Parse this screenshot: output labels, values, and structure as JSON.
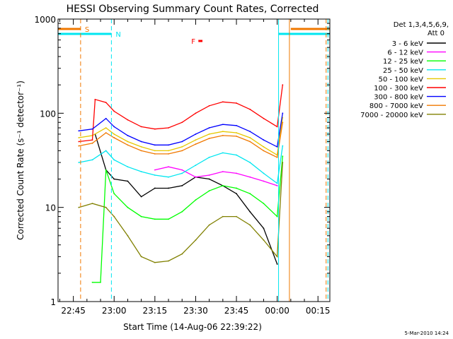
{
  "chart_data": {
    "type": "line",
    "title": "HESSI Observing Summary Count Rates, Corrected",
    "xlabel": "Start Time (14-Aug-06 22:39:22)",
    "ylabel": "Corrected Count Rate (s⁻¹ detector⁻¹)",
    "y_scale": "log",
    "ylim": [
      1,
      1000
    ],
    "xlim": [
      "22:39:22",
      "00:19:22"
    ],
    "x_ticks": [
      "22:45",
      "23:00",
      "23:15",
      "23:30",
      "23:45",
      "00:00",
      "00:15"
    ],
    "y_ticks": [
      "1",
      "10",
      "100",
      "1000"
    ],
    "grid": false,
    "legend_position": "right",
    "legend_header": [
      "Det 1,3,4,5,6,9,",
      "Att 0"
    ],
    "timestamp": "5-Mar-2010 14:24",
    "flags": [
      {
        "label": "S",
        "color": "#f07800",
        "start": "22:39:22",
        "end": "22:47:40"
      },
      {
        "label": "N",
        "color": "#00e6f0",
        "start": "22:39:22",
        "end": "22:59:00"
      },
      {
        "label": "F",
        "color": "#ff0000",
        "start": "23:31:00",
        "end": "23:32:30"
      }
    ],
    "vlines": [
      {
        "time": "22:47:40",
        "color": "#f07800"
      },
      {
        "time": "22:59:00",
        "color": "#00e6f0"
      },
      {
        "time": "00:18:00",
        "color": "#f07800"
      },
      {
        "time": "00:18:40",
        "color": "#00e6f0"
      }
    ],
    "series": [
      {
        "name": "3 - 6 keV",
        "color": "#000000",
        "x": [
          "22:53",
          "22:57",
          "23:00",
          "23:05",
          "23:10",
          "23:15",
          "23:20",
          "23:25",
          "23:30",
          "23:35",
          "23:40",
          "23:45",
          "23:50",
          "23:55",
          "00:00"
        ],
        "y": [
          60,
          25,
          20,
          19,
          13,
          16,
          16,
          17,
          21,
          20,
          17,
          14,
          9,
          6,
          2.5
        ]
      },
      {
        "name": "6 - 12 keV",
        "color": "#ff00ff",
        "x": [
          "23:15",
          "23:20",
          "23:25",
          "23:30",
          "23:35",
          "23:40",
          "23:45",
          "23:50",
          "23:55",
          "00:00"
        ],
        "y": [
          25,
          27,
          25,
          21,
          22,
          24,
          23,
          21,
          19,
          17
        ]
      },
      {
        "name": "12 - 25 keV",
        "color": "#00ff00",
        "x": [
          "22:52",
          "22:55",
          "22:57",
          "23:00",
          "23:05",
          "23:10",
          "23:15",
          "23:20",
          "23:25",
          "23:30",
          "23:35",
          "23:40",
          "23:45",
          "23:50",
          "23:55",
          "00:00",
          "00:02"
        ],
        "y": [
          1.6,
          1.6,
          25,
          14,
          10,
          8,
          7.5,
          7.5,
          9,
          12,
          15,
          17,
          16,
          14,
          11,
          8,
          35
        ]
      },
      {
        "name": "25 - 50 keV",
        "color": "#00e6f0",
        "x": [
          "22:47",
          "22:52",
          "22:57",
          "23:00",
          "23:05",
          "23:10",
          "23:15",
          "23:20",
          "23:25",
          "23:30",
          "23:35",
          "23:40",
          "23:45",
          "23:50",
          "23:55",
          "00:00",
          "00:02"
        ],
        "y": [
          30,
          32,
          40,
          32,
          27,
          24,
          22,
          21,
          23,
          28,
          34,
          38,
          36,
          30,
          23,
          18,
          45
        ]
      },
      {
        "name": "50 - 100 keV",
        "color": "#e6c800",
        "x": [
          "22:47",
          "22:52",
          "22:57",
          "23:00",
          "23:05",
          "23:10",
          "23:15",
          "23:20",
          "23:25",
          "23:30",
          "23:35",
          "23:40",
          "23:45",
          "23:50",
          "23:55",
          "00:00",
          "00:02"
        ],
        "y": [
          55,
          58,
          70,
          60,
          50,
          44,
          40,
          40,
          44,
          52,
          60,
          64,
          62,
          55,
          44,
          36,
          90
        ]
      },
      {
        "name": "100 - 300 keV",
        "color": "#ff0000",
        "x": [
          "22:47",
          "22:52",
          "22:53",
          "22:57",
          "23:00",
          "23:05",
          "23:10",
          "23:15",
          "23:20",
          "23:25",
          "23:30",
          "23:35",
          "23:40",
          "23:45",
          "23:50",
          "23:55",
          "00:00",
          "00:02"
        ],
        "y": [
          50,
          52,
          140,
          130,
          105,
          85,
          72,
          68,
          70,
          80,
          100,
          120,
          132,
          128,
          110,
          88,
          72,
          200
        ]
      },
      {
        "name": "300 - 800 keV",
        "color": "#0000ff",
        "x": [
          "22:47",
          "22:52",
          "22:57",
          "23:00",
          "23:05",
          "23:10",
          "23:15",
          "23:20",
          "23:25",
          "23:30",
          "23:35",
          "23:40",
          "23:45",
          "23:50",
          "23:55",
          "00:00",
          "00:02"
        ],
        "y": [
          65,
          68,
          88,
          72,
          58,
          50,
          46,
          46,
          50,
          60,
          70,
          76,
          74,
          64,
          52,
          44,
          100
        ]
      },
      {
        "name": "800 - 7000 keV",
        "color": "#f07800",
        "x": [
          "22:47",
          "22:52",
          "22:57",
          "23:00",
          "23:05",
          "23:10",
          "23:15",
          "23:20",
          "23:25",
          "23:30",
          "23:35",
          "23:40",
          "23:45",
          "23:50",
          "23:55",
          "00:00",
          "00:02"
        ],
        "y": [
          45,
          48,
          62,
          55,
          46,
          40,
          37,
          37,
          40,
          47,
          54,
          58,
          57,
          50,
          40,
          34,
          80
        ]
      },
      {
        "name": "7000 - 20000 keV",
        "color": "#808000",
        "x": [
          "22:47",
          "22:52",
          "22:57",
          "23:00",
          "23:05",
          "23:10",
          "23:15",
          "23:20",
          "23:25",
          "23:30",
          "23:35",
          "23:40",
          "23:45",
          "23:50",
          "23:55",
          "00:00",
          "00:02"
        ],
        "y": [
          10,
          11,
          10,
          8,
          5,
          3,
          2.6,
          2.7,
          3.2,
          4.5,
          6.5,
          8,
          8,
          6.5,
          4.5,
          3,
          30
        ]
      }
    ]
  }
}
